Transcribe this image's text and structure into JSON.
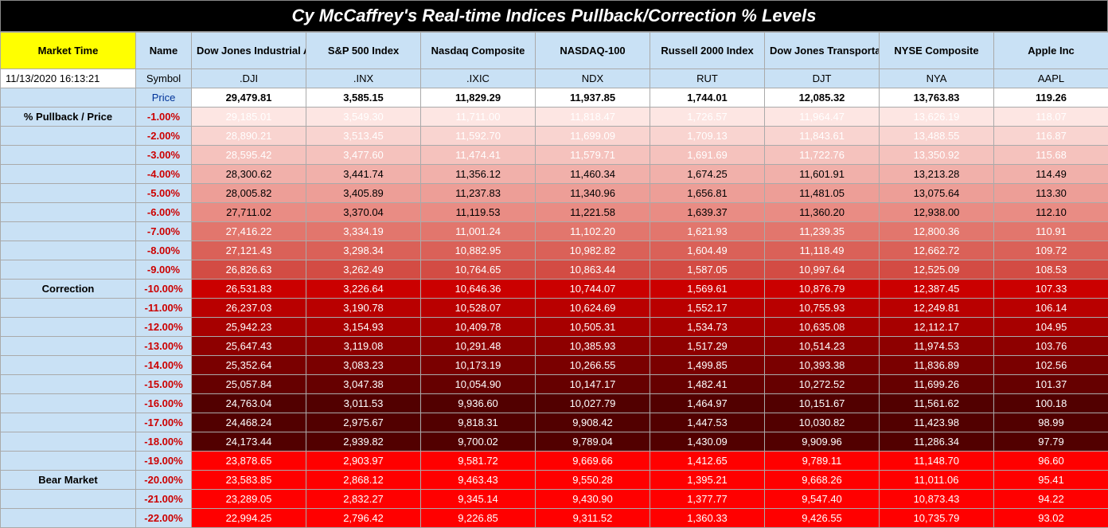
{
  "title": "Cy McCaffrey's Real-time Indices Pullback/Correction % Levels",
  "headers": {
    "market_time": "Market Time",
    "name": "Name",
    "cols": [
      "Dow Jones Industrial Average",
      "S&P 500 Index",
      "Nasdaq Composite",
      "NASDAQ-100",
      "Russell 2000 Index",
      "Dow Jones Transportation Average",
      "NYSE Composite",
      "Apple Inc"
    ]
  },
  "timestamp": "11/13/2020 16:13:21",
  "symbol_label": "Symbol",
  "symbols": [
    ".DJI",
    ".INX",
    ".IXIC",
    "NDX",
    "RUT",
    "DJT",
    "NYA",
    "AAPL"
  ],
  "price_label": "Price",
  "prices": [
    "29,479.81",
    "3,585.15",
    "11,829.29",
    "11,937.85",
    "1,744.01",
    "12,085.32",
    "13,763.83",
    "119.26"
  ],
  "sections": {
    "pullback": "% Pullback / Price",
    "correction": "Correction",
    "bear": "Bear Market"
  },
  "row_gradient_colors": [
    {
      "bg": "#fde6e3",
      "fg": "#ffffff"
    },
    {
      "bg": "#f9d4d0",
      "fg": "#ffffff"
    },
    {
      "bg": "#f5c2bd",
      "fg": "#ffffff"
    },
    {
      "bg": "#f1b0aa",
      "fg": "#000000"
    },
    {
      "bg": "#ed9e97",
      "fg": "#000000"
    },
    {
      "bg": "#e98c84",
      "fg": "#000000"
    },
    {
      "bg": "#e2766d",
      "fg": "#ffffff"
    },
    {
      "bg": "#da6158",
      "fg": "#ffffff"
    },
    {
      "bg": "#d34c44",
      "fg": "#ffffff"
    },
    {
      "bg": "#cb0000",
      "fg": "#ffffff"
    },
    {
      "bg": "#b90000",
      "fg": "#ffffff"
    },
    {
      "bg": "#a70000",
      "fg": "#ffffff"
    },
    {
      "bg": "#8e0000",
      "fg": "#ffffff"
    },
    {
      "bg": "#7a0000",
      "fg": "#ffffff"
    },
    {
      "bg": "#660000",
      "fg": "#ffffff"
    },
    {
      "bg": "#520000",
      "fg": "#ffffff"
    },
    {
      "bg": "#520000",
      "fg": "#ffffff"
    },
    {
      "bg": "#520000",
      "fg": "#ffffff"
    },
    {
      "bg": "#ff0000",
      "fg": "#ffffff"
    },
    {
      "bg": "#ff0000",
      "fg": "#ffffff"
    },
    {
      "bg": "#ff0000",
      "fg": "#ffffff"
    },
    {
      "bg": "#ff0000",
      "fg": "#ffffff"
    }
  ],
  "rows": [
    {
      "section": "pullback",
      "pct": "-1.00%",
      "v": [
        "29,185.01",
        "3,549.30",
        "11,711.00",
        "11,818.47",
        "1,726.57",
        "11,964.47",
        "13,626.19",
        "118.07"
      ]
    },
    {
      "section": "",
      "pct": "-2.00%",
      "v": [
        "28,890.21",
        "3,513.45",
        "11,592.70",
        "11,699.09",
        "1,709.13",
        "11,843.61",
        "13,488.55",
        "116.87"
      ]
    },
    {
      "section": "",
      "pct": "-3.00%",
      "v": [
        "28,595.42",
        "3,477.60",
        "11,474.41",
        "11,579.71",
        "1,691.69",
        "11,722.76",
        "13,350.92",
        "115.68"
      ]
    },
    {
      "section": "",
      "pct": "-4.00%",
      "v": [
        "28,300.62",
        "3,441.74",
        "11,356.12",
        "11,460.34",
        "1,674.25",
        "11,601.91",
        "13,213.28",
        "114.49"
      ]
    },
    {
      "section": "",
      "pct": "-5.00%",
      "v": [
        "28,005.82",
        "3,405.89",
        "11,237.83",
        "11,340.96",
        "1,656.81",
        "11,481.05",
        "13,075.64",
        "113.30"
      ]
    },
    {
      "section": "",
      "pct": "-6.00%",
      "v": [
        "27,711.02",
        "3,370.04",
        "11,119.53",
        "11,221.58",
        "1,639.37",
        "11,360.20",
        "12,938.00",
        "112.10"
      ]
    },
    {
      "section": "",
      "pct": "-7.00%",
      "v": [
        "27,416.22",
        "3,334.19",
        "11,001.24",
        "11,102.20",
        "1,621.93",
        "11,239.35",
        "12,800.36",
        "110.91"
      ]
    },
    {
      "section": "",
      "pct": "-8.00%",
      "v": [
        "27,121.43",
        "3,298.34",
        "10,882.95",
        "10,982.82",
        "1,604.49",
        "11,118.49",
        "12,662.72",
        "109.72"
      ]
    },
    {
      "section": "",
      "pct": "-9.00%",
      "v": [
        "26,826.63",
        "3,262.49",
        "10,764.65",
        "10,863.44",
        "1,587.05",
        "10,997.64",
        "12,525.09",
        "108.53"
      ]
    },
    {
      "section": "correction",
      "pct": "-10.00%",
      "v": [
        "26,531.83",
        "3,226.64",
        "10,646.36",
        "10,744.07",
        "1,569.61",
        "10,876.79",
        "12,387.45",
        "107.33"
      ]
    },
    {
      "section": "",
      "pct": "-11.00%",
      "v": [
        "26,237.03",
        "3,190.78",
        "10,528.07",
        "10,624.69",
        "1,552.17",
        "10,755.93",
        "12,249.81",
        "106.14"
      ]
    },
    {
      "section": "",
      "pct": "-12.00%",
      "v": [
        "25,942.23",
        "3,154.93",
        "10,409.78",
        "10,505.31",
        "1,534.73",
        "10,635.08",
        "12,112.17",
        "104.95"
      ]
    },
    {
      "section": "",
      "pct": "-13.00%",
      "v": [
        "25,647.43",
        "3,119.08",
        "10,291.48",
        "10,385.93",
        "1,517.29",
        "10,514.23",
        "11,974.53",
        "103.76"
      ]
    },
    {
      "section": "",
      "pct": "-14.00%",
      "v": [
        "25,352.64",
        "3,083.23",
        "10,173.19",
        "10,266.55",
        "1,499.85",
        "10,393.38",
        "11,836.89",
        "102.56"
      ]
    },
    {
      "section": "",
      "pct": "-15.00%",
      "v": [
        "25,057.84",
        "3,047.38",
        "10,054.90",
        "10,147.17",
        "1,482.41",
        "10,272.52",
        "11,699.26",
        "101.37"
      ]
    },
    {
      "section": "",
      "pct": "-16.00%",
      "v": [
        "24,763.04",
        "3,011.53",
        "9,936.60",
        "10,027.79",
        "1,464.97",
        "10,151.67",
        "11,561.62",
        "100.18"
      ]
    },
    {
      "section": "",
      "pct": "-17.00%",
      "v": [
        "24,468.24",
        "2,975.67",
        "9,818.31",
        "9,908.42",
        "1,447.53",
        "10,030.82",
        "11,423.98",
        "98.99"
      ]
    },
    {
      "section": "",
      "pct": "-18.00%",
      "v": [
        "24,173.44",
        "2,939.82",
        "9,700.02",
        "9,789.04",
        "1,430.09",
        "9,909.96",
        "11,286.34",
        "97.79"
      ]
    },
    {
      "section": "",
      "pct": "-19.00%",
      "v": [
        "23,878.65",
        "2,903.97",
        "9,581.72",
        "9,669.66",
        "1,412.65",
        "9,789.11",
        "11,148.70",
        "96.60"
      ]
    },
    {
      "section": "bear",
      "pct": "-20.00%",
      "v": [
        "23,583.85",
        "2,868.12",
        "9,463.43",
        "9,550.28",
        "1,395.21",
        "9,668.26",
        "11,011.06",
        "95.41"
      ]
    },
    {
      "section": "",
      "pct": "-21.00%",
      "v": [
        "23,289.05",
        "2,832.27",
        "9,345.14",
        "9,430.90",
        "1,377.77",
        "9,547.40",
        "10,873.43",
        "94.22"
      ]
    },
    {
      "section": "",
      "pct": "-22.00%",
      "v": [
        "22,994.25",
        "2,796.42",
        "9,226.85",
        "9,311.52",
        "1,360.33",
        "9,426.55",
        "10,735.79",
        "93.02"
      ]
    }
  ]
}
